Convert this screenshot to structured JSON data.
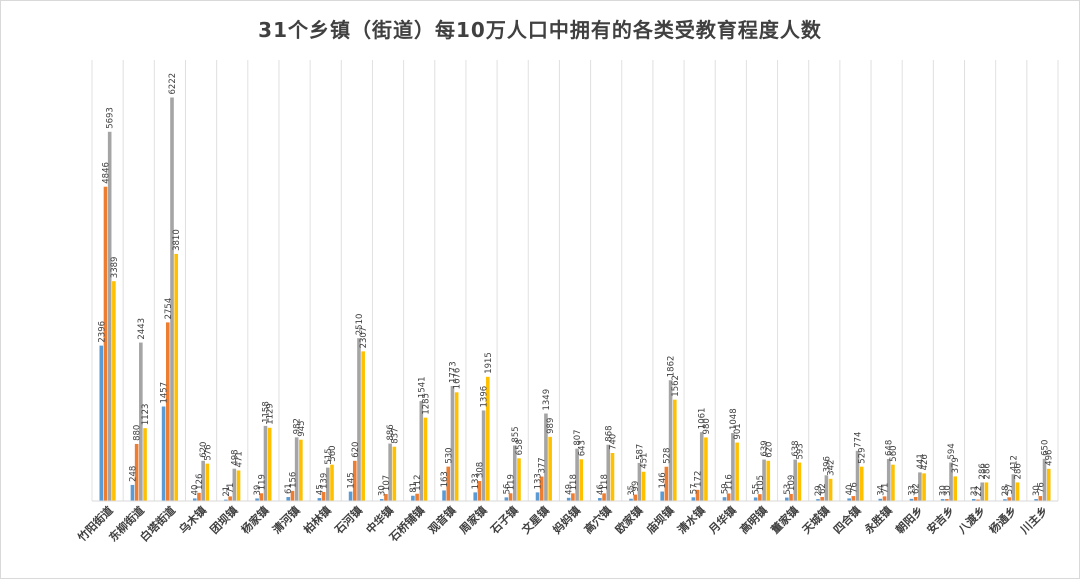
{
  "chart_data": {
    "type": "bar",
    "title": "31个乡镇（街道）每10万人口中拥有的各类受教育程度人数",
    "xlabel": "",
    "ylabel": "",
    "ylim": [
      0,
      6800
    ],
    "grid": true,
    "legend": "none",
    "colors": [
      "#5B9BD5",
      "#ED7D31",
      "#A5A5A5",
      "#FFC000"
    ],
    "categories": [
      "竹阳街道",
      "东柳街道",
      "白塔街道",
      "乌木镇",
      "团坝镇",
      "杨家镇",
      "清河镇",
      "柏林镇",
      "石河镇",
      "中华镇",
      "石桥铺镇",
      "观音镇",
      "周家镇",
      "石子镇",
      "文星镇",
      "妈妈镇",
      "高穴镇",
      "欧家镇",
      "庙坝镇",
      "清水镇",
      "月华镇",
      "高明镇",
      "董家镇",
      "天城镇",
      "四合镇",
      "永胜镇",
      "朝阳乡",
      "安吉乡",
      "八渡乡",
      "杨通乡",
      "川主乡"
    ],
    "series": [
      {
        "values": [
          2396,
          248,
          1457,
          40,
          21,
          39,
          61,
          45,
          145,
          30,
          81,
          163,
          133,
          56,
          133,
          49,
          46,
          35,
          146,
          57,
          59,
          55,
          53,
          29,
          40,
          34,
          33,
          30,
          31,
          28,
          30
        ]
      },
      {
        "values": [
          4846,
          880,
          2754,
          126,
          71,
          119,
          156,
          139,
          620,
          107,
          112,
          530,
          308,
          119,
          377,
          118,
          118,
          99,
          528,
          172,
          116,
          105,
          109,
          62,
          76,
          71,
          62,
          30,
          22,
          57,
          76
        ]
      },
      {
        "values": [
          5693,
          2443,
          6222,
          620,
          498,
          1158,
          982,
          515,
          2510,
          886,
          1541,
          1773,
          1396,
          855,
          1349,
          807,
          868,
          587,
          1862,
          1061,
          1048,
          639,
          638,
          396,
          774,
          648,
          441,
          594,
          286,
          412,
          650
        ]
      },
      {
        "values": [
          3389,
          1123,
          3810,
          576,
          471,
          1129,
          945,
          560,
          2307,
          837,
          1285,
          1676,
          1915,
          658,
          989,
          643,
          740,
          451,
          1562,
          980,
          901,
          620,
          593,
          342,
          529,
          560,
          426,
          379,
          286,
          286,
          496
        ]
      }
    ]
  }
}
